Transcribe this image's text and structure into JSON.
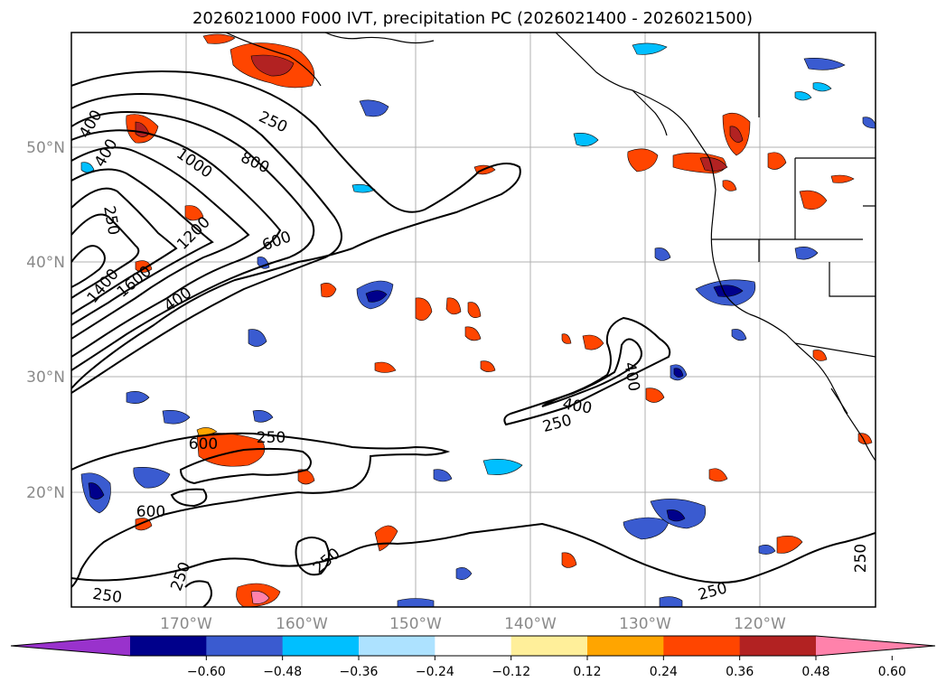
{
  "title": "2026021000 F000 IVT, precipitation PC (2026021400 - 2026021500)",
  "lon_labels": [
    "170°W",
    "160°W",
    "150°W",
    "140°W",
    "130°W",
    "120°W"
  ],
  "lat_labels": [
    "50°N",
    "40°N",
    "30°N",
    "20°N"
  ],
  "colorbar": {
    "colors": [
      "#9932cc",
      "#00008b",
      "#3a5bd0",
      "#00bfff",
      "#ade2ff",
      "#ffffff",
      "#ffef9a",
      "#ffa500",
      "#ff4500",
      "#b22222",
      "#ff82ab"
    ],
    "ticks": [
      "−0.60",
      "−0.48",
      "−0.36",
      "−0.24",
      "−0.12",
      "0.12",
      "0.24",
      "0.36",
      "0.48",
      "0.60"
    ]
  },
  "contour_labels": [
    {
      "id": "c250a",
      "text": "250"
    },
    {
      "id": "c800",
      "text": "800"
    },
    {
      "id": "c1000",
      "text": "1000"
    },
    {
      "id": "c400a",
      "text": "400"
    },
    {
      "id": "c250b",
      "text": "250"
    },
    {
      "id": "c1200",
      "text": "1200"
    },
    {
      "id": "c600a",
      "text": "600"
    },
    {
      "id": "c1400",
      "text": "1400"
    },
    {
      "id": "c1600",
      "text": "1600"
    },
    {
      "id": "c400b",
      "text": "400"
    },
    {
      "id": "c400c",
      "text": "400"
    },
    {
      "id": "c400d",
      "text": "400"
    },
    {
      "id": "c250c",
      "text": "250"
    },
    {
      "id": "c400e",
      "text": "400"
    },
    {
      "id": "c250d",
      "text": "250"
    },
    {
      "id": "c600b",
      "text": "600"
    },
    {
      "id": "c600c",
      "text": "600"
    },
    {
      "id": "c250e",
      "text": "250"
    },
    {
      "id": "c250f",
      "text": "250"
    },
    {
      "id": "c250g",
      "text": "250"
    },
    {
      "id": "c250h",
      "text": "250"
    }
  ]
}
